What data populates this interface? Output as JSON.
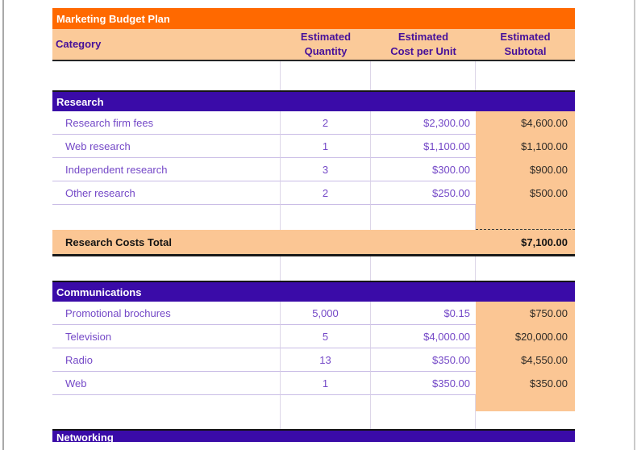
{
  "title": "Marketing Budget Plan",
  "columns": {
    "category": "Category",
    "quantity": {
      "line1": "Estimated",
      "line2": "Quantity"
    },
    "cost": {
      "line1": "Estimated",
      "line2": "Cost per Unit"
    },
    "subtotal": {
      "line1": "Estimated",
      "line2": "Subtotal"
    }
  },
  "sections": [
    {
      "name": "Research",
      "rows": [
        {
          "label": "Research firm fees",
          "qty": "2",
          "cost": "$2,300.00",
          "subtotal": "$4,600.00"
        },
        {
          "label": "Web research",
          "qty": "1",
          "cost": "$1,100.00",
          "subtotal": "$1,100.00"
        },
        {
          "label": "Independent research",
          "qty": "3",
          "cost": "$300.00",
          "subtotal": "$900.00"
        },
        {
          "label": "Other research",
          "qty": "2",
          "cost": "$250.00",
          "subtotal": "$500.00"
        }
      ],
      "total_label": "Research Costs Total",
      "total_value": "$7,100.00"
    },
    {
      "name": "Communications",
      "rows": [
        {
          "label": "Promotional brochures",
          "qty": "5,000",
          "cost": "$0.15",
          "subtotal": "$750.00"
        },
        {
          "label": "Television",
          "qty": "5",
          "cost": "$4,000.00",
          "subtotal": "$20,000.00"
        },
        {
          "label": "Radio",
          "qty": "13",
          "cost": "$350.00",
          "subtotal": "$4,550.00"
        },
        {
          "label": "Web",
          "qty": "1",
          "cost": "$350.00",
          "subtotal": "$350.00"
        }
      ]
    },
    {
      "name": "Networking"
    }
  ],
  "colors": {
    "title_bg": "#FF6900",
    "header_bg": "#FBCA99",
    "section_bg": "#3A0BA8",
    "subtotal_bg": "#FBC694",
    "body_text": "#7448C7",
    "header_text": "#46109A"
  }
}
